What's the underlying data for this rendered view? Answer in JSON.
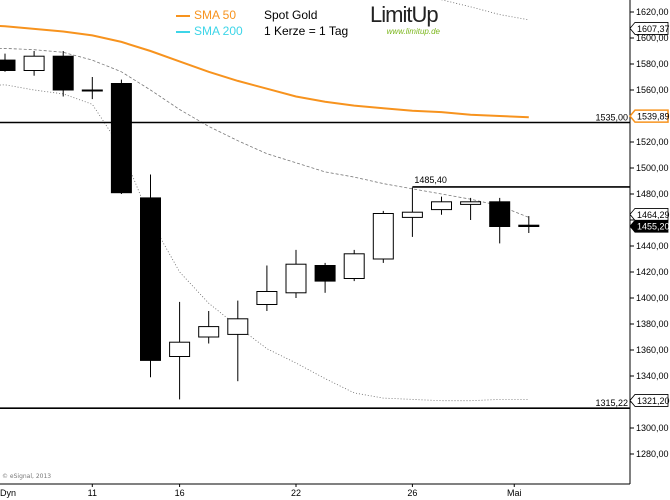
{
  "legend": {
    "sma50_label": "SMA 50",
    "sma200_label": "SMA 200",
    "title": "Spot Gold",
    "subtitle": "1 Kerze = 1 Tag"
  },
  "logo": {
    "brand": "LimitUp",
    "url": "www.limitup.de"
  },
  "credit": "© eSignal, 2013",
  "colors": {
    "sma50": "#f7931e",
    "sma200": "#3dd5e8",
    "up_candle_fill": "#ffffff",
    "down_candle_fill": "#000000",
    "price_box": "#000000",
    "logo_green": "#7bb61c"
  },
  "chart_data": {
    "type": "candlestick",
    "title": "Spot Gold",
    "subtitle": "1 Kerze = 1 Tag",
    "y_axis": {
      "ylim": [
        1264,
        1628
      ],
      "ticks": [
        1280,
        1300,
        1320,
        1340,
        1360,
        1380,
        1400,
        1420,
        1440,
        1460,
        1480,
        1500,
        1520,
        1540,
        1560,
        1580,
        1600,
        1620
      ],
      "tick_labels": [
        "1280,00",
        "1300,00",
        "1320,00",
        "1340,00",
        "1360,00",
        "1380,00",
        "1400,00",
        "1420,00",
        "1440,00",
        "1460,00",
        "1480,00",
        "1500,00",
        "1520,00",
        "1540,00",
        "1560,00",
        "1580,00",
        "1600,00",
        "1620,00"
      ],
      "side": "right"
    },
    "x_axis": {
      "tick_labels": [
        "Dyn",
        "11",
        "16",
        "22",
        "26",
        "Mai"
      ],
      "tick_sessions": [
        -0.4,
        3,
        6,
        10,
        14,
        17.5
      ]
    },
    "candles": [
      {
        "session": 0,
        "open": 1583,
        "high": 1588,
        "low": 1574,
        "close": 1575
      },
      {
        "session": 1,
        "open": 1575,
        "high": 1590,
        "low": 1571,
        "close": 1586
      },
      {
        "session": 2,
        "open": 1586,
        "high": 1590,
        "low": 1555,
        "close": 1560
      },
      {
        "session": 3,
        "open": 1560,
        "high": 1570,
        "low": 1553,
        "close": 1560
      },
      {
        "session": 4,
        "open": 1565,
        "high": 1568,
        "low": 1480,
        "close": 1481
      },
      {
        "session": 5,
        "open": 1477,
        "high": 1495,
        "low": 1339,
        "close": 1352
      },
      {
        "session": 6,
        "open": 1355,
        "high": 1397,
        "low": 1322,
        "close": 1366
      },
      {
        "session": 7,
        "open": 1370,
        "high": 1390,
        "low": 1365,
        "close": 1378
      },
      {
        "session": 8,
        "open": 1372,
        "high": 1398,
        "low": 1336,
        "close": 1384
      },
      {
        "session": 9,
        "open": 1395,
        "high": 1425,
        "low": 1390,
        "close": 1405
      },
      {
        "session": 10,
        "open": 1404,
        "high": 1437,
        "low": 1400,
        "close": 1426
      },
      {
        "session": 11,
        "open": 1425,
        "high": 1427,
        "low": 1404,
        "close": 1413
      },
      {
        "session": 12,
        "open": 1415,
        "high": 1437,
        "low": 1413,
        "close": 1434
      },
      {
        "session": 13,
        "open": 1430,
        "high": 1467,
        "low": 1427,
        "close": 1465
      },
      {
        "session": 14,
        "open": 1462,
        "high": 1485,
        "low": 1447,
        "close": 1466
      },
      {
        "session": 15,
        "open": 1468,
        "high": 1478,
        "low": 1464,
        "close": 1474
      },
      {
        "session": 16,
        "open": 1472,
        "high": 1477,
        "low": 1460,
        "close": 1474
      },
      {
        "session": 17,
        "open": 1474,
        "high": 1477,
        "low": 1442,
        "close": 1455
      },
      {
        "session": 18,
        "open": 1456,
        "high": 1463,
        "low": 1450,
        "close": 1455
      }
    ],
    "sma50": [
      {
        "session": -0.9,
        "value": 1610
      },
      {
        "session": 0,
        "value": 1609
      },
      {
        "session": 1,
        "value": 1607
      },
      {
        "session": 2,
        "value": 1605
      },
      {
        "session": 3,
        "value": 1602
      },
      {
        "session": 4,
        "value": 1597
      },
      {
        "session": 5,
        "value": 1590
      },
      {
        "session": 6,
        "value": 1582
      },
      {
        "session": 7,
        "value": 1574
      },
      {
        "session": 8,
        "value": 1567
      },
      {
        "session": 9,
        "value": 1561
      },
      {
        "session": 10,
        "value": 1555
      },
      {
        "session": 11,
        "value": 1551
      },
      {
        "session": 12,
        "value": 1548
      },
      {
        "session": 13,
        "value": 1546
      },
      {
        "session": 14,
        "value": 1544
      },
      {
        "session": 15,
        "value": 1543
      },
      {
        "session": 16,
        "value": 1541
      },
      {
        "session": 17,
        "value": 1540
      },
      {
        "session": 18,
        "value": 1539
      }
    ],
    "upper_band_dashed": [
      {
        "session": -0.9,
        "value": 1591
      },
      {
        "session": 0,
        "value": 1592
      },
      {
        "session": 1,
        "value": 1591
      },
      {
        "session": 2,
        "value": 1589
      },
      {
        "session": 3,
        "value": 1583
      },
      {
        "session": 4,
        "value": 1574
      },
      {
        "session": 5,
        "value": 1560
      },
      {
        "session": 6,
        "value": 1545
      },
      {
        "session": 7,
        "value": 1532
      },
      {
        "session": 8,
        "value": 1521
      },
      {
        "session": 9,
        "value": 1511
      },
      {
        "session": 10,
        "value": 1504
      },
      {
        "session": 11,
        "value": 1497
      },
      {
        "session": 12,
        "value": 1493
      },
      {
        "session": 13,
        "value": 1488
      },
      {
        "session": 14,
        "value": 1484
      },
      {
        "session": 15,
        "value": 1480
      },
      {
        "session": 16,
        "value": 1476
      },
      {
        "session": 17,
        "value": 1471
      },
      {
        "session": 18,
        "value": 1462
      }
    ],
    "lower_band_dotted": [
      {
        "session": -0.9,
        "value": 1563
      },
      {
        "session": 0,
        "value": 1564
      },
      {
        "session": 1,
        "value": 1560
      },
      {
        "session": 2,
        "value": 1557
      },
      {
        "session": 3,
        "value": 1549
      },
      {
        "session": 4,
        "value": 1515
      },
      {
        "session": 5,
        "value": 1460
      },
      {
        "session": 6,
        "value": 1420
      },
      {
        "session": 7,
        "value": 1396
      },
      {
        "session": 8,
        "value": 1378
      },
      {
        "session": 9,
        "value": 1361
      },
      {
        "session": 10,
        "value": 1350
      },
      {
        "session": 11,
        "value": 1338
      },
      {
        "session": 12,
        "value": 1327
      },
      {
        "session": 13,
        "value": 1323
      },
      {
        "session": 14,
        "value": 1322
      },
      {
        "session": 15,
        "value": 1321
      },
      {
        "session": 16,
        "value": 1321
      },
      {
        "session": 17,
        "value": 1322
      },
      {
        "session": 18,
        "value": 1322
      }
    ],
    "top_right_dotted": [
      {
        "session": 14.7,
        "value": 1631
      },
      {
        "session": 16,
        "value": 1624
      },
      {
        "session": 17,
        "value": 1618
      },
      {
        "session": 18,
        "value": 1614
      }
    ],
    "horizontal_lines": [
      {
        "value": 1535.0,
        "label": "1535,00",
        "start_session": -0.9,
        "label_placement": "right"
      },
      {
        "value": 1485.4,
        "label": "1485,40",
        "start_session": 14,
        "label_placement": "above-left"
      },
      {
        "value": 1315.22,
        "label": "1315,22",
        "start_session": -0.9,
        "label_placement": "right"
      }
    ],
    "price_boxes": [
      {
        "value": 1607.37,
        "label": "1607,37",
        "style": "white"
      },
      {
        "value": 1539.89,
        "label": "1539,89",
        "style": "orange"
      },
      {
        "value": 1464.29,
        "label": "1464,29",
        "style": "white"
      },
      {
        "value": 1455.2,
        "label": "1455,20",
        "style": "black"
      },
      {
        "value": 1321.2,
        "label": "1321,20",
        "style": "white"
      }
    ],
    "grid": false
  }
}
